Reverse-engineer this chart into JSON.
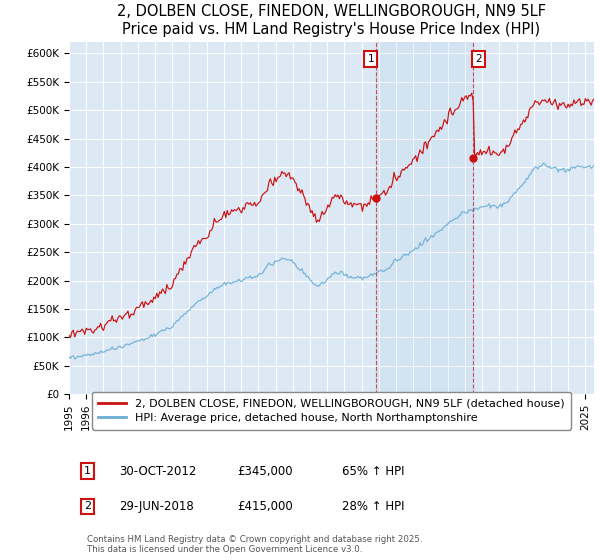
{
  "title": "2, DOLBEN CLOSE, FINEDON, WELLINGBOROUGH, NN9 5LF",
  "subtitle": "Price paid vs. HM Land Registry's House Price Index (HPI)",
  "ylim": [
    0,
    620000
  ],
  "yticks": [
    0,
    50000,
    100000,
    150000,
    200000,
    250000,
    300000,
    350000,
    400000,
    450000,
    500000,
    550000,
    600000
  ],
  "ytick_labels": [
    "£0",
    "£50K",
    "£100K",
    "£150K",
    "£200K",
    "£250K",
    "£300K",
    "£350K",
    "£400K",
    "£450K",
    "£500K",
    "£550K",
    "£600K"
  ],
  "xlim_start": 1995.0,
  "xlim_end": 2025.5,
  "purchase1_date": 2012.83,
  "purchase1_price": 345000,
  "purchase1_label": "1",
  "purchase2_date": 2018.49,
  "purchase2_price": 415000,
  "purchase2_label": "2",
  "hpi_color": "#6baed6",
  "price_color": "#cc1111",
  "vline_color": "#cc1111",
  "background_color": "#dce9f5",
  "grid_color": "white",
  "legend_label_price": "2, DOLBEN CLOSE, FINEDON, WELLINGBOROUGH, NN9 5LF (detached house)",
  "legend_label_hpi": "HPI: Average price, detached house, North Northamptonshire",
  "copyright": "Contains HM Land Registry data © Crown copyright and database right 2025.\nThis data is licensed under the Open Government Licence v3.0.",
  "title_fontsize": 10.5,
  "tick_fontsize": 7.5,
  "legend_fontsize": 8,
  "annot_fontsize": 8.5,
  "marker1_x": 2012.83,
  "marker1_y": 345000,
  "marker2_x": 2018.49,
  "marker2_y": 415000
}
